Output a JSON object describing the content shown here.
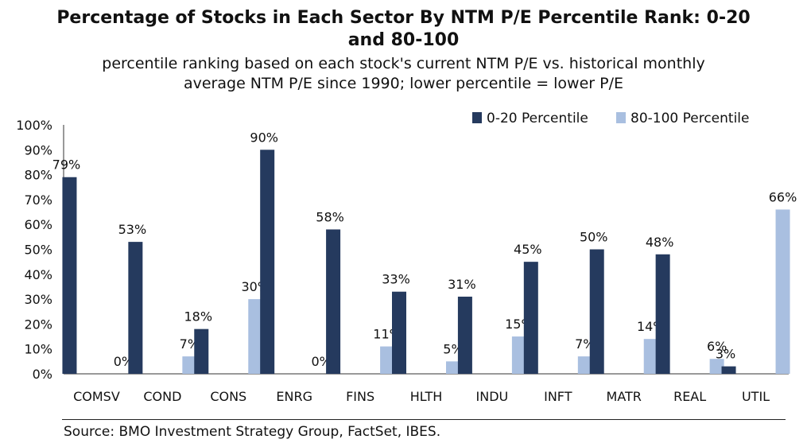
{
  "chart_data": {
    "type": "bar",
    "title_line1": "Percentage of Stocks in Each Sector By NTM P/E Percentile Rank: 0-20",
    "title_line2": "and 80-100",
    "subtitle_line1": "percentile ranking based on each stock's current NTM P/E vs. historical monthly",
    "subtitle_line2": "average NTM P/E since 1990; lower percentile = lower P/E",
    "xlabel": "",
    "ylabel": "",
    "ylim": [
      0,
      100
    ],
    "yticks": [
      "0%",
      "10%",
      "20%",
      "30%",
      "40%",
      "50%",
      "60%",
      "70%",
      "80%",
      "90%",
      "100%"
    ],
    "categories": [
      "COMSV",
      "COND",
      "CONS",
      "ENRG",
      "FINS",
      "HLTH",
      "INDU",
      "INFT",
      "MATR",
      "REAL",
      "UTIL"
    ],
    "series": [
      {
        "name": "0-20 Percentile",
        "color": "#253a5e",
        "values": [
          79,
          53,
          18,
          90,
          58,
          33,
          31,
          45,
          50,
          48,
          3
        ]
      },
      {
        "name": "80-100 Percentile",
        "color": "#a9bfe0",
        "values": [
          0,
          7,
          30,
          0,
          11,
          5,
          15,
          7,
          14,
          6,
          66
        ]
      }
    ],
    "legend_position": "top-right",
    "grid": false
  },
  "source": "Source: BMO Investment Strategy Group, FactSet, IBES."
}
